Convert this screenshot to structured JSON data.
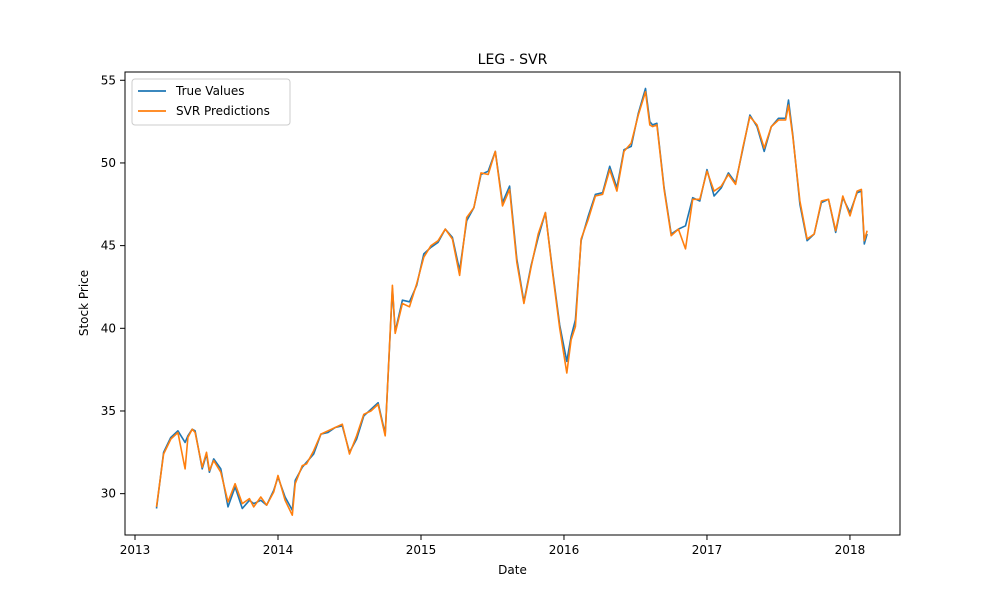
{
  "chart_data": {
    "type": "line",
    "title": "LEG - SVR",
    "xlabel": "Date",
    "ylabel": "Stock Price",
    "xlim": [
      2012.93,
      2018.35
    ],
    "ylim": [
      27.5,
      55.5
    ],
    "xticks": [
      2013,
      2014,
      2015,
      2016,
      2017,
      2018
    ],
    "xtick_labels": [
      "2013",
      "2014",
      "2015",
      "2016",
      "2017",
      "2018"
    ],
    "yticks": [
      30,
      35,
      40,
      45,
      50,
      55
    ],
    "ytick_labels": [
      "30",
      "35",
      "40",
      "45",
      "50",
      "55"
    ],
    "grid": false,
    "legend": "top-left",
    "series": [
      {
        "name": "True Values",
        "color": "#1f77b4",
        "x": [
          2013.15,
          2013.2,
          2013.25,
          2013.3,
          2013.35,
          2013.37,
          2013.4,
          2013.42,
          2013.47,
          2013.5,
          2013.52,
          2013.55,
          2013.6,
          2013.65,
          2013.7,
          2013.75,
          2013.8,
          2013.83,
          2013.88,
          2013.92,
          2013.97,
          2014.0,
          2014.05,
          2014.1,
          2014.12,
          2014.17,
          2014.2,
          2014.25,
          2014.3,
          2014.35,
          2014.4,
          2014.45,
          2014.5,
          2014.55,
          2014.6,
          2014.65,
          2014.7,
          2014.75,
          2014.8,
          2014.82,
          2014.87,
          2014.92,
          2014.97,
          2015.02,
          2015.07,
          2015.12,
          2015.17,
          2015.22,
          2015.27,
          2015.32,
          2015.37,
          2015.42,
          2015.47,
          2015.52,
          2015.57,
          2015.62,
          2015.67,
          2015.72,
          2015.77,
          2015.82,
          2015.87,
          2015.92,
          2015.97,
          2016.02,
          2016.05,
          2016.08,
          2016.12,
          2016.17,
          2016.22,
          2016.27,
          2016.32,
          2016.37,
          2016.42,
          2016.47,
          2016.52,
          2016.57,
          2016.6,
          2016.62,
          2016.65,
          2016.7,
          2016.75,
          2016.8,
          2016.85,
          2016.9,
          2016.95,
          2017.0,
          2017.05,
          2017.1,
          2017.15,
          2017.2,
          2017.25,
          2017.3,
          2017.35,
          2017.4,
          2017.45,
          2017.5,
          2017.55,
          2017.57,
          2017.6,
          2017.65,
          2017.7,
          2017.75,
          2017.8,
          2017.85,
          2017.9,
          2017.95,
          2018.0,
          2018.05,
          2018.08,
          2018.1
        ],
        "y": [
          29.1,
          32.5,
          33.4,
          33.8,
          33.1,
          33.5,
          33.9,
          33.8,
          31.5,
          32.4,
          31.3,
          32.1,
          31.5,
          29.2,
          30.4,
          29.1,
          29.6,
          29.4,
          29.6,
          29.3,
          30.2,
          31.0,
          29.8,
          29.0,
          30.8,
          31.6,
          31.9,
          32.4,
          33.6,
          33.7,
          34.0,
          34.1,
          32.5,
          33.3,
          34.7,
          35.1,
          35.5,
          33.6,
          42.4,
          39.8,
          41.7,
          41.6,
          42.6,
          44.5,
          44.9,
          45.2,
          46.0,
          45.5,
          43.5,
          46.5,
          47.3,
          49.3,
          49.5,
          50.7,
          47.6,
          48.6,
          44.2,
          41.6,
          43.8,
          45.5,
          47.0,
          43.5,
          40.2,
          38.0,
          39.5,
          40.5,
          45.3,
          46.8,
          48.1,
          48.2,
          49.8,
          48.5,
          50.8,
          51.0,
          53.0,
          54.5,
          52.5,
          52.3,
          52.4,
          48.5,
          45.7,
          46.0,
          46.2,
          47.9,
          47.7,
          49.6,
          48.0,
          48.5,
          49.4,
          48.8,
          50.8,
          52.9,
          52.2,
          50.7,
          52.2,
          52.7,
          52.7,
          53.8,
          51.7,
          47.5,
          45.3,
          45.7,
          47.6,
          47.8,
          45.8,
          47.9,
          47.0,
          48.2,
          48.3,
          45.1
        ],
        "endpoint": [
          2018.12,
          45.7
        ]
      },
      {
        "name": "SVR Predictions",
        "color": "#ff7f0e",
        "x": [
          2013.15,
          2013.2,
          2013.25,
          2013.3,
          2013.35,
          2013.37,
          2013.4,
          2013.42,
          2013.47,
          2013.5,
          2013.52,
          2013.55,
          2013.6,
          2013.65,
          2013.7,
          2013.75,
          2013.8,
          2013.83,
          2013.88,
          2013.92,
          2013.97,
          2014.0,
          2014.05,
          2014.1,
          2014.12,
          2014.17,
          2014.2,
          2014.25,
          2014.3,
          2014.35,
          2014.4,
          2014.45,
          2014.5,
          2014.55,
          2014.6,
          2014.65,
          2014.7,
          2014.75,
          2014.8,
          2014.82,
          2014.87,
          2014.92,
          2014.97,
          2015.02,
          2015.07,
          2015.12,
          2015.17,
          2015.22,
          2015.27,
          2015.32,
          2015.37,
          2015.42,
          2015.47,
          2015.52,
          2015.57,
          2015.62,
          2015.67,
          2015.72,
          2015.77,
          2015.82,
          2015.87,
          2015.92,
          2015.97,
          2016.02,
          2016.05,
          2016.08,
          2016.12,
          2016.17,
          2016.22,
          2016.27,
          2016.32,
          2016.37,
          2016.42,
          2016.47,
          2016.52,
          2016.57,
          2016.6,
          2016.62,
          2016.65,
          2016.7,
          2016.75,
          2016.8,
          2016.85,
          2016.9,
          2016.95,
          2017.0,
          2017.05,
          2017.1,
          2017.15,
          2017.2,
          2017.25,
          2017.3,
          2017.35,
          2017.4,
          2017.45,
          2017.5,
          2017.55,
          2017.57,
          2017.6,
          2017.65,
          2017.7,
          2017.75,
          2017.8,
          2017.85,
          2017.9,
          2017.95,
          2018.0,
          2018.05,
          2018.08,
          2018.1
        ],
        "y": [
          29.2,
          32.4,
          33.3,
          33.7,
          31.5,
          33.4,
          33.9,
          33.7,
          31.6,
          32.5,
          31.4,
          32.0,
          31.3,
          29.5,
          30.6,
          29.4,
          29.7,
          29.2,
          29.8,
          29.3,
          30.1,
          31.1,
          29.6,
          28.7,
          30.6,
          31.7,
          31.8,
          32.6,
          33.6,
          33.8,
          34.0,
          34.2,
          32.4,
          33.5,
          34.8,
          35.0,
          35.4,
          33.5,
          42.6,
          39.7,
          41.5,
          41.3,
          42.7,
          44.3,
          45.0,
          45.3,
          46.0,
          45.4,
          43.2,
          46.7,
          47.3,
          49.4,
          49.3,
          50.7,
          47.4,
          48.4,
          44.0,
          41.5,
          43.7,
          45.7,
          47.0,
          43.4,
          40.0,
          37.3,
          39.3,
          40.1,
          45.4,
          46.6,
          48.0,
          48.1,
          49.6,
          48.3,
          50.7,
          51.2,
          52.9,
          54.3,
          52.3,
          52.2,
          52.3,
          48.4,
          45.6,
          46.0,
          44.8,
          47.8,
          47.8,
          49.5,
          48.3,
          48.6,
          49.3,
          48.7,
          50.9,
          52.8,
          52.3,
          50.9,
          52.2,
          52.6,
          52.6,
          53.5,
          51.6,
          47.7,
          45.4,
          45.7,
          47.7,
          47.8,
          45.9,
          48.0,
          46.8,
          48.3,
          48.4,
          45.3
        ],
        "endpoint": [
          2018.12,
          45.9
        ]
      }
    ]
  }
}
